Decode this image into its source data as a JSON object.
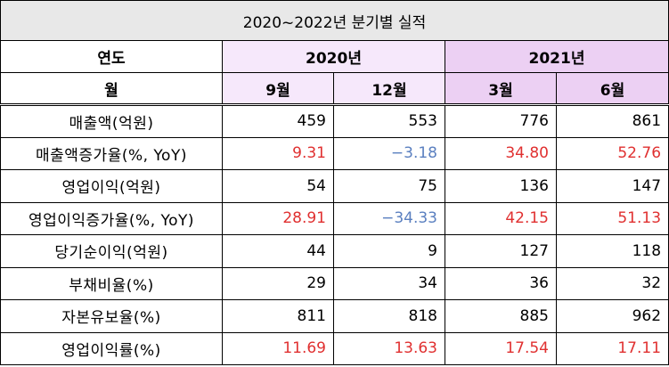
{
  "title": "2020~2022년 분기별 실적",
  "header": {
    "year_label": "연도",
    "month_label": "월",
    "years": [
      {
        "label": "2020년",
        "months": [
          "9월",
          "12월"
        ]
      },
      {
        "label": "2021년",
        "months": [
          "3월",
          "6월"
        ]
      }
    ]
  },
  "rows": [
    {
      "label": "매출액(억원)",
      "values": [
        "459",
        "553",
        "776",
        "861"
      ],
      "colors": [
        "black",
        "black",
        "black",
        "black"
      ]
    },
    {
      "label": "매출액증가율(%, YoY)",
      "values": [
        "9.31",
        "−3.18",
        "34.80",
        "52.76"
      ],
      "colors": [
        "red",
        "blue",
        "red",
        "red"
      ]
    },
    {
      "label": "영업이익(억원)",
      "values": [
        "54",
        "75",
        "136",
        "147"
      ],
      "colors": [
        "black",
        "black",
        "black",
        "black"
      ]
    },
    {
      "label": "영업이익증가율(%, YoY)",
      "values": [
        "28.91",
        "−34.33",
        "42.15",
        "51.13"
      ],
      "colors": [
        "red",
        "blue",
        "red",
        "red"
      ]
    },
    {
      "label": "당기순이익(억원)",
      "values": [
        "44",
        "9",
        "127",
        "118"
      ],
      "colors": [
        "black",
        "black",
        "black",
        "black"
      ]
    },
    {
      "label": "부채비율(%)",
      "values": [
        "29",
        "34",
        "36",
        "32"
      ],
      "colors": [
        "black",
        "black",
        "black",
        "black"
      ]
    },
    {
      "label": "자본유보율(%)",
      "values": [
        "811",
        "818",
        "885",
        "962"
      ],
      "colors": [
        "black",
        "black",
        "black",
        "black"
      ]
    },
    {
      "label": "영업이익률(%)",
      "values": [
        "11.69",
        "13.63",
        "17.54",
        "17.11"
      ],
      "colors": [
        "red",
        "red",
        "red",
        "red"
      ]
    }
  ],
  "colors": {
    "positive": "#e03030",
    "negative": "#5b80c0",
    "title_bg": "#e8e8e8",
    "header_light": "#f6e8fb",
    "header_dark": "#ecd0f3"
  }
}
